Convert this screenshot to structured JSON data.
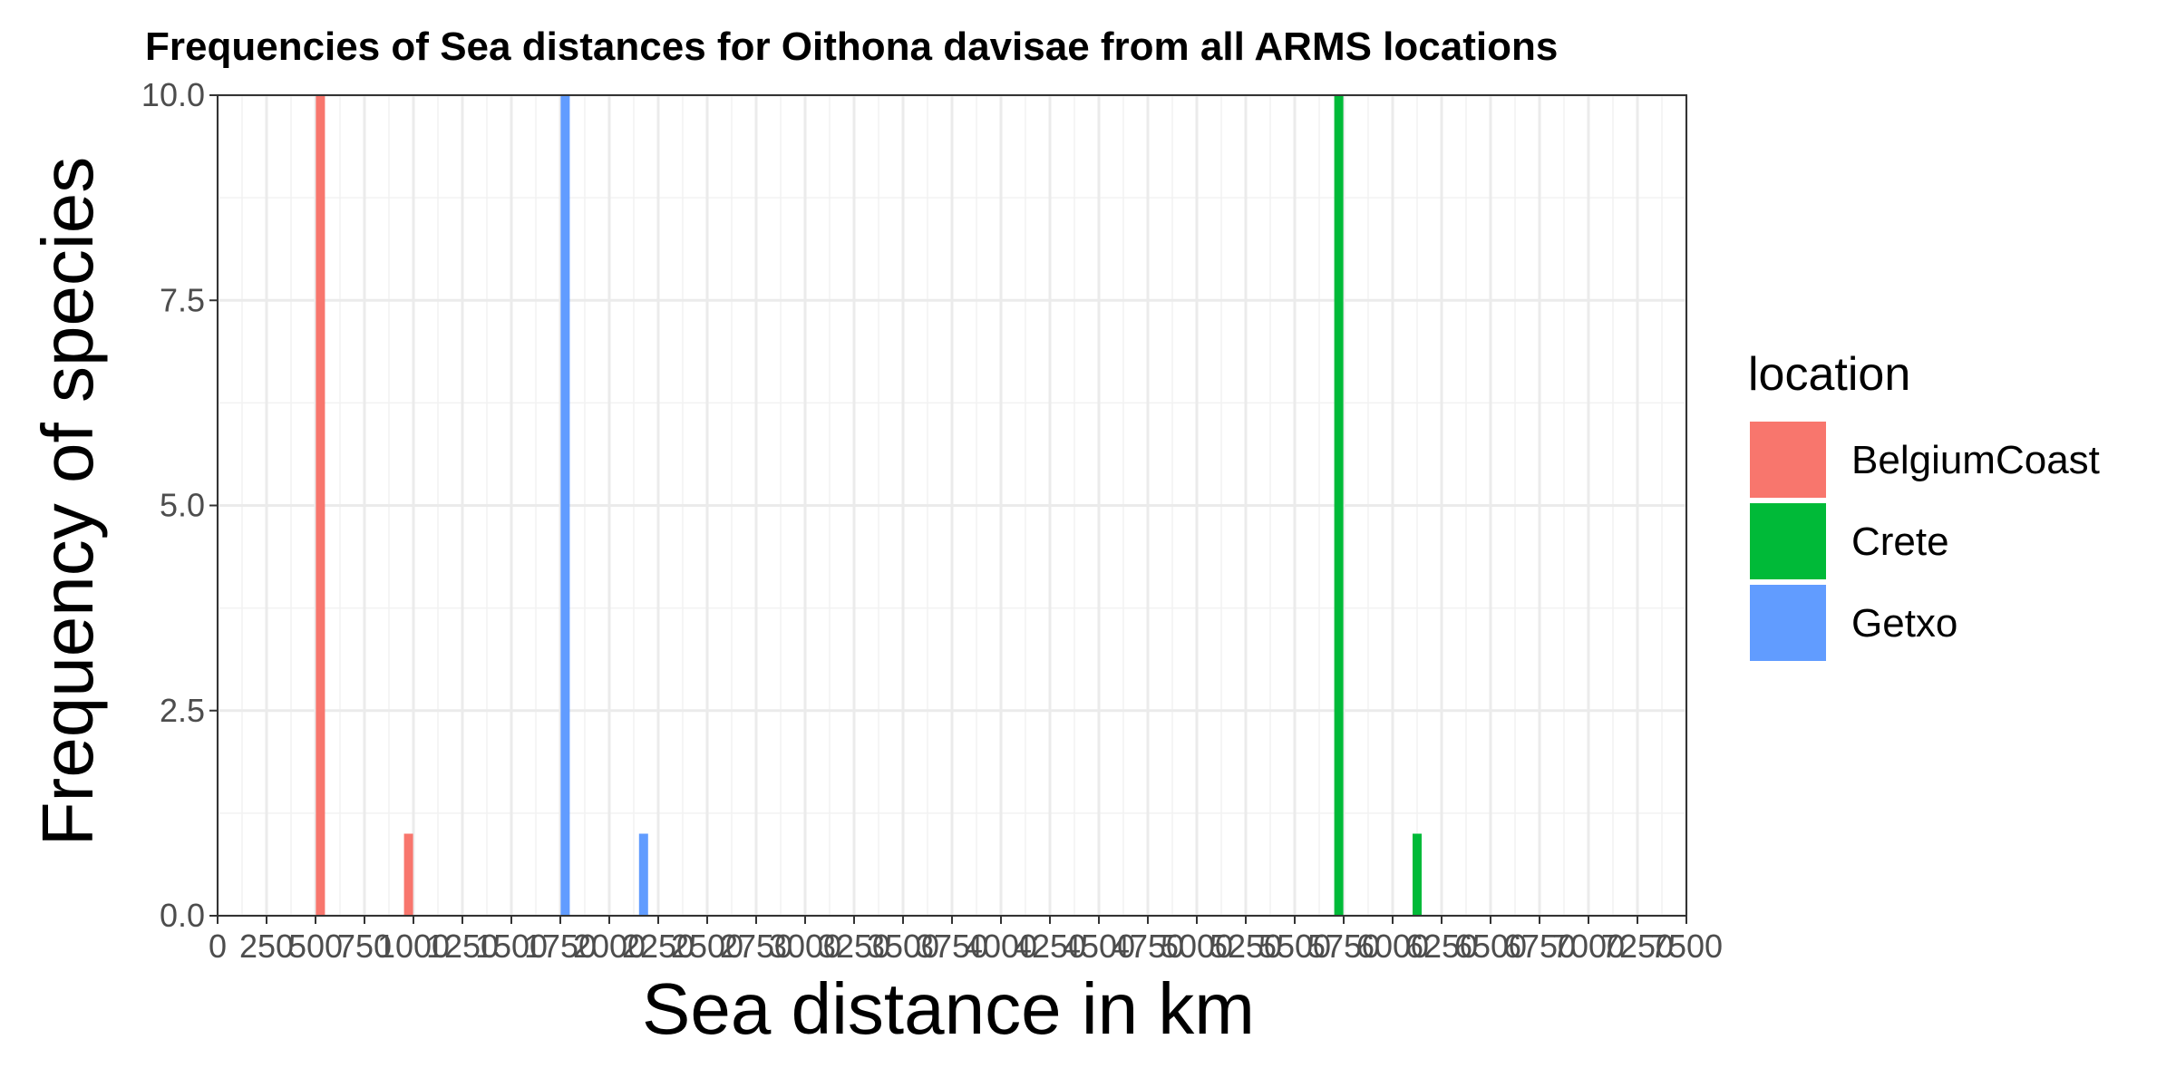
{
  "chart_data": {
    "type": "bar",
    "title": "Frequencies of Sea distances for Oithona davisae from all ARMS locations",
    "xlabel": "Sea distance in km",
    "ylabel": "Frequency of species",
    "xlim": [
      0,
      7500
    ],
    "ylim": [
      0,
      10
    ],
    "x_tick_values": [
      0,
      250,
      500,
      750,
      1000,
      1250,
      1500,
      1750,
      2000,
      2250,
      2500,
      2750,
      3000,
      3250,
      3500,
      3750,
      4000,
      4250,
      4500,
      4750,
      5000,
      5250,
      5500,
      5750,
      6000,
      6250,
      6500,
      6750,
      7000,
      7250,
      7500
    ],
    "x_tick_labels": [
      "0",
      "250",
      "500",
      "750",
      "1000",
      "1250",
      "1500",
      "1750",
      "2000",
      "2250",
      "2500",
      "2750",
      "3000",
      "3250",
      "3500",
      "3750",
      "4000",
      "4250",
      "4500",
      "4750",
      "5000",
      "5250",
      "5500",
      "5750",
      "6000",
      "6250",
      "6500",
      "6750",
      "7000",
      "7250",
      "7500"
    ],
    "y_tick_values": [
      0,
      2.5,
      5,
      7.5,
      10
    ],
    "y_tick_labels": [
      "0.0",
      "2.5",
      "5.0",
      "7.5",
      "10.0"
    ],
    "grid": true,
    "legend": {
      "title": "location",
      "position": "right"
    },
    "series": [
      {
        "name": "BelgiumCoast",
        "color": "#F8766D",
        "points": [
          {
            "x": 525,
            "y": 10
          },
          {
            "x": 975,
            "y": 1
          }
        ]
      },
      {
        "name": "Crete",
        "color": "#00BA38",
        "points": [
          {
            "x": 5725,
            "y": 10
          },
          {
            "x": 6125,
            "y": 1
          }
        ]
      },
      {
        "name": "Getxo",
        "color": "#619CFF",
        "points": [
          {
            "x": 1775,
            "y": 10
          },
          {
            "x": 2175,
            "y": 1
          }
        ]
      }
    ]
  }
}
